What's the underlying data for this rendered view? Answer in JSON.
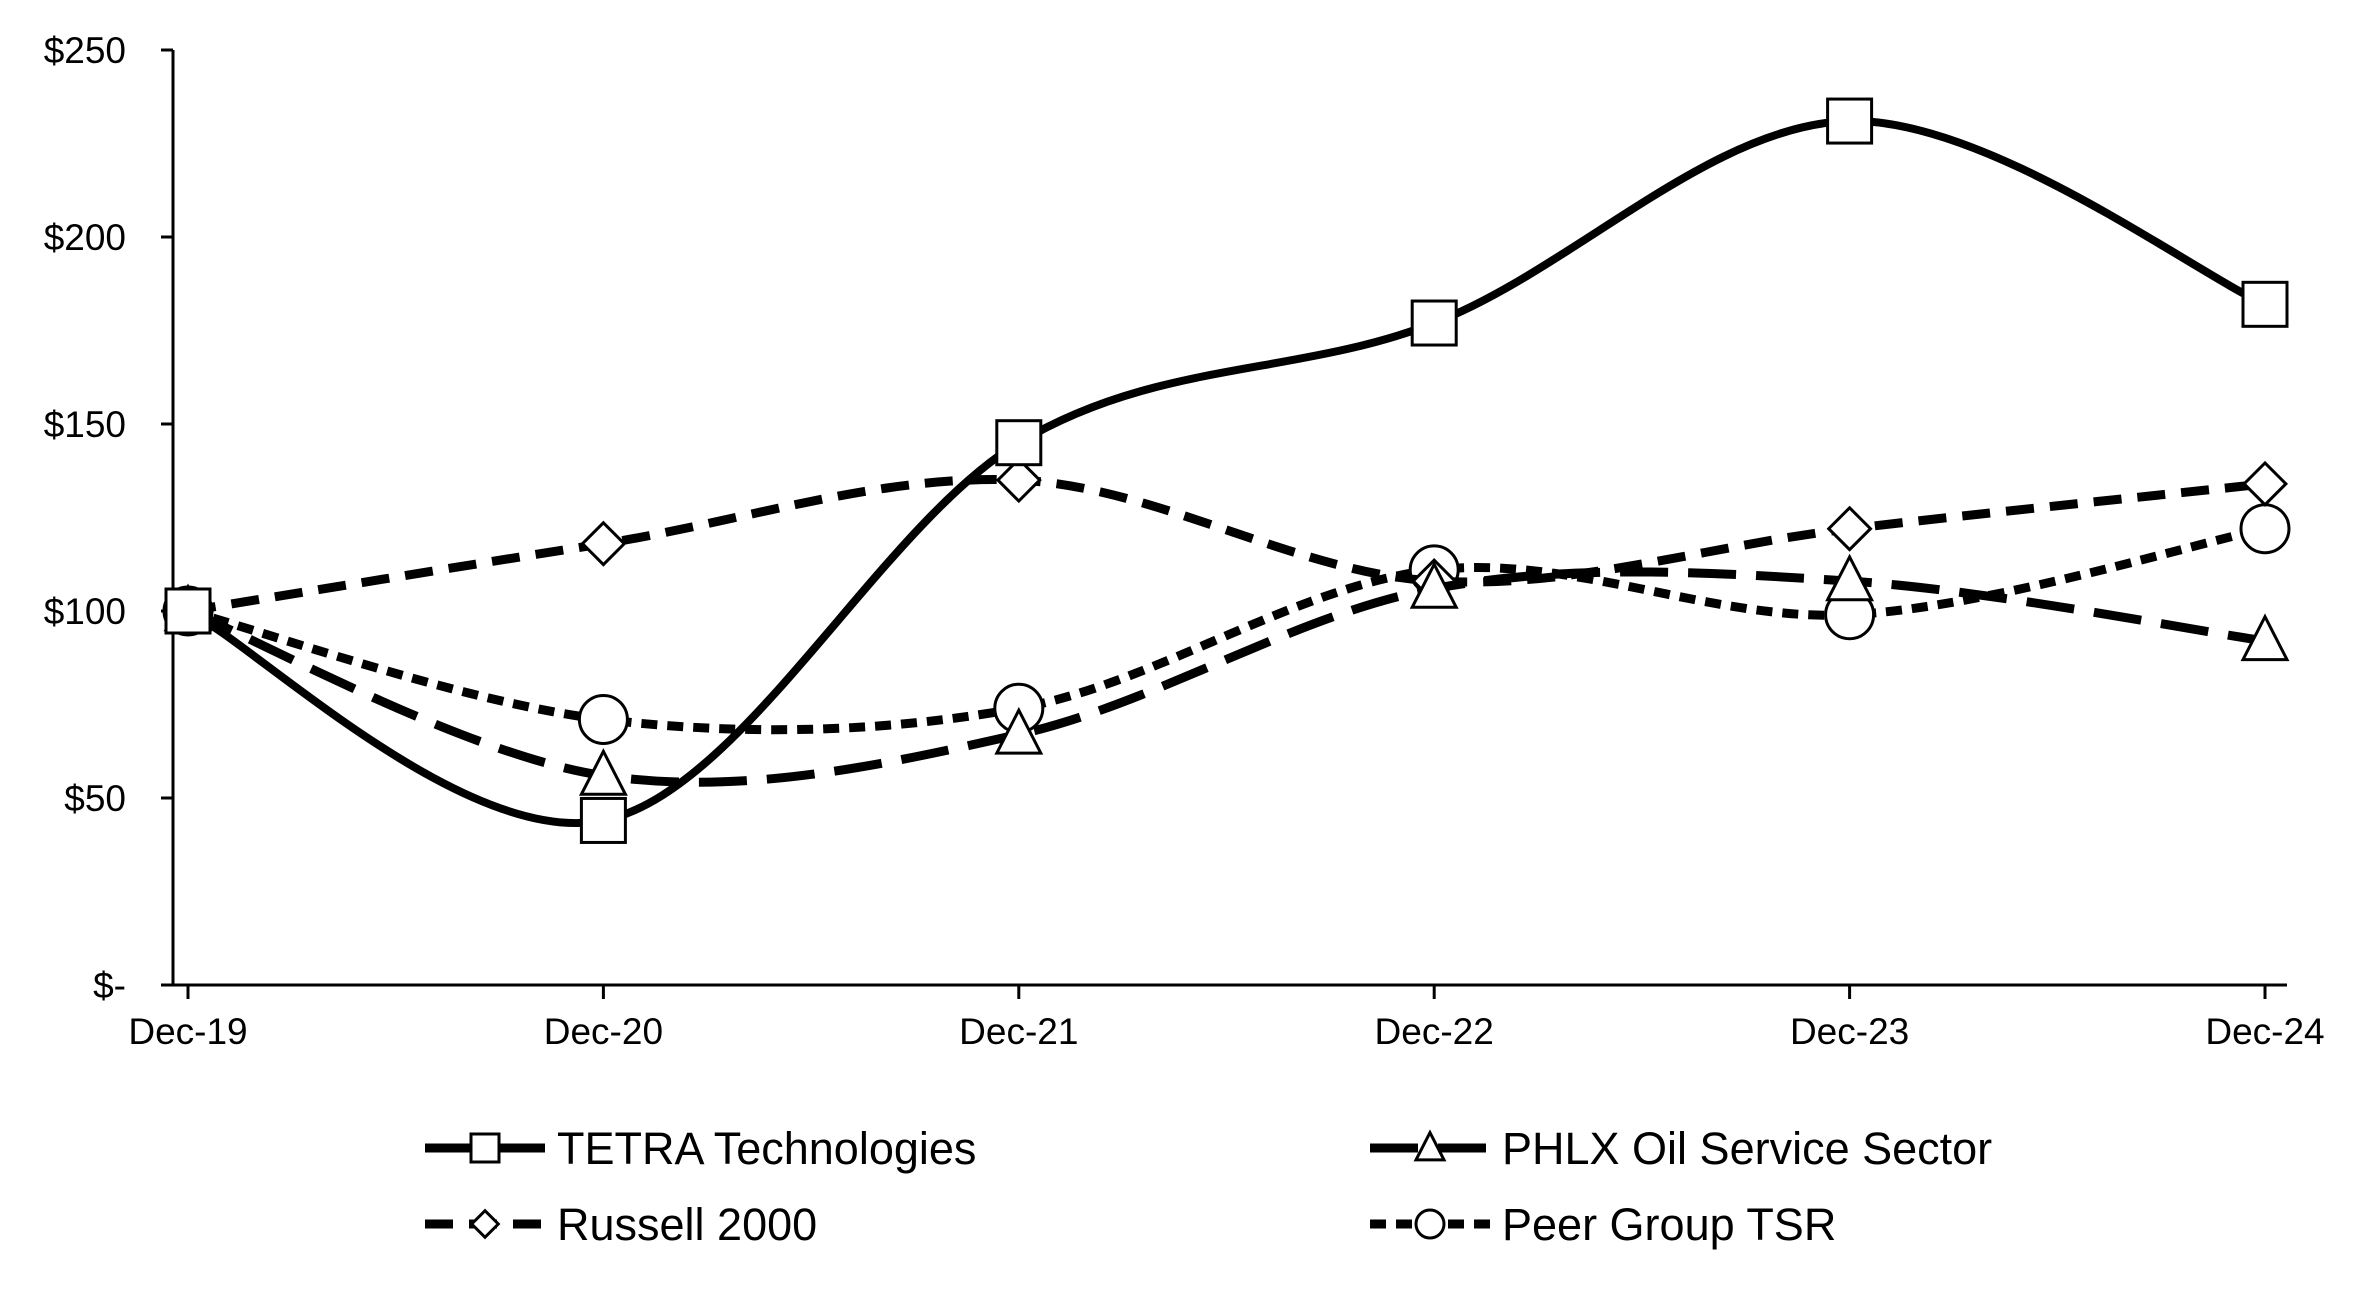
{
  "chart_data": {
    "type": "line",
    "title": "",
    "xlabel": "",
    "ylabel": "",
    "categories": [
      "Dec-19",
      "Dec-20",
      "Dec-21",
      "Dec-22",
      "Dec-23",
      "Dec-24"
    ],
    "ylim": [
      0,
      250
    ],
    "y_ticks": [
      {
        "value": 0,
        "label": "$-"
      },
      {
        "value": 50,
        "label": "$50"
      },
      {
        "value": 100,
        "label": "$100"
      },
      {
        "value": 150,
        "label": "$150"
      },
      {
        "value": 200,
        "label": "$200"
      },
      {
        "value": 250,
        "label": "$250"
      }
    ],
    "grid": false,
    "legend_position": "bottom",
    "series": [
      {
        "name": "TETRA Technologies",
        "marker": "square",
        "dash": "solid",
        "values": [
          100,
          44,
          145,
          177,
          231,
          182
        ]
      },
      {
        "name": "PHLX Oil Service Sector",
        "marker": "triangle",
        "dash": "long-dash",
        "values": [
          100,
          56,
          67,
          106,
          108,
          92
        ]
      },
      {
        "name": "Russell 2000",
        "marker": "diamond",
        "dash": "dash",
        "values": [
          100,
          118,
          135,
          108,
          122,
          134
        ]
      },
      {
        "name": "Peer Group TSR",
        "marker": "circle",
        "dash": "short-dash",
        "values": [
          100,
          71,
          74,
          111,
          99,
          122
        ]
      }
    ],
    "colors": {
      "line": "#000000",
      "marker_fill": "#ffffff",
      "background": "#ffffff"
    }
  }
}
